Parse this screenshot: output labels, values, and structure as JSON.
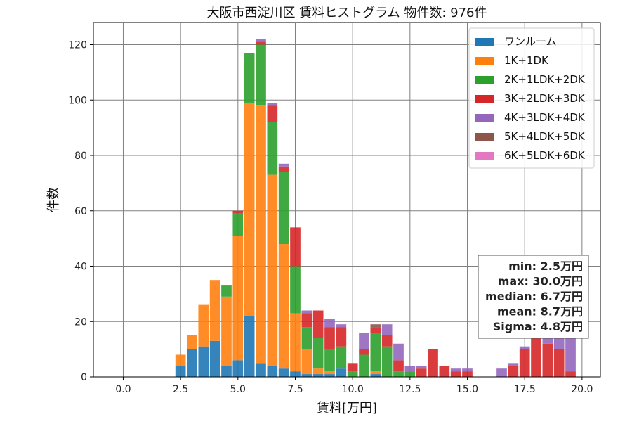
{
  "chart_data": {
    "type": "bar",
    "stacked": true,
    "title": "大阪市西淀川区 賃料ヒストグラム 物件数: 976件",
    "xlabel": "賃料[万円]",
    "ylabel": "件数",
    "xlim": [
      -1.3,
      20.8
    ],
    "ylim": [
      0,
      128
    ],
    "xticks": [
      0.0,
      2.5,
      5.0,
      7.5,
      10.0,
      12.5,
      15.0,
      17.5,
      20.0
    ],
    "xtick_labels": [
      "0.0",
      "2.5",
      "5.0",
      "7.5",
      "10.0",
      "12.5",
      "15.0",
      "17.5",
      "20.0"
    ],
    "yticks": [
      0,
      20,
      40,
      60,
      80,
      100,
      120
    ],
    "ytick_labels": [
      "0",
      "20",
      "40",
      "60",
      "80",
      "100",
      "120"
    ],
    "grid": true,
    "legend_position": "top-right",
    "bin_width": 0.5,
    "x": [
      2.5,
      3.0,
      3.5,
      4.0,
      4.5,
      5.0,
      5.5,
      6.0,
      6.5,
      7.0,
      7.5,
      8.0,
      8.5,
      9.0,
      9.5,
      10.0,
      10.5,
      11.0,
      11.5,
      12.0,
      12.5,
      13.0,
      13.5,
      14.0,
      14.5,
      15.0,
      16.5,
      17.0,
      17.5,
      18.0,
      18.5,
      19.0,
      19.5
    ],
    "series": [
      {
        "name": "ワンルーム",
        "color": "#1f77b4",
        "values": [
          4,
          10,
          11,
          13,
          4,
          6,
          22,
          5,
          4,
          3,
          2,
          1,
          1,
          1,
          3,
          0,
          0,
          1,
          0,
          0,
          0,
          0,
          0,
          0,
          0,
          0,
          0,
          0,
          0,
          0,
          0,
          0,
          0
        ]
      },
      {
        "name": "1K+1DK",
        "color": "#ff7f0e",
        "values": [
          4,
          5,
          15,
          22,
          25,
          45,
          77,
          93,
          69,
          45,
          21,
          9,
          2,
          1,
          0,
          0,
          0,
          1,
          0,
          0,
          0,
          0,
          0,
          0,
          0,
          0,
          0,
          0,
          0,
          0,
          0,
          0,
          0
        ]
      },
      {
        "name": "2K+1LDK+2DK",
        "color": "#2ca02c",
        "values": [
          0,
          0,
          0,
          0,
          4,
          8,
          18,
          22,
          19,
          26,
          17,
          8,
          11,
          8,
          8,
          2,
          8,
          14,
          11,
          2,
          2,
          0,
          0,
          0,
          0,
          0,
          0,
          0,
          0,
          0,
          0,
          0,
          0
        ]
      },
      {
        "name": "3K+2LDK+3DK",
        "color": "#d62728",
        "values": [
          0,
          0,
          0,
          0,
          0,
          1,
          0,
          1,
          6,
          2,
          14,
          5,
          10,
          8,
          7,
          3,
          2,
          2,
          4,
          4,
          0,
          3,
          10,
          4,
          2,
          2,
          0,
          4,
          10,
          15,
          12,
          10,
          2
        ]
      },
      {
        "name": "4K+3LDK+4DK",
        "color": "#9467bd",
        "values": [
          0,
          0,
          0,
          0,
          0,
          0,
          0,
          1,
          1,
          1,
          0,
          1,
          0,
          3,
          1,
          0,
          6,
          0,
          4,
          6,
          2,
          1,
          0,
          0,
          1,
          1,
          3,
          1,
          1,
          5,
          5,
          5,
          12
        ]
      },
      {
        "name": "5K+4LDK+5DK",
        "color": "#8c564b",
        "values": [
          0,
          0,
          0,
          0,
          0,
          0,
          0,
          0,
          0,
          0,
          0,
          0,
          0,
          0,
          0,
          0,
          0,
          1,
          0,
          0,
          0,
          0,
          0,
          0,
          0,
          0,
          0,
          0,
          0,
          0,
          0,
          0,
          0
        ]
      },
      {
        "name": "6K+5LDK+6DK",
        "color": "#e377c2",
        "values": [
          0,
          0,
          0,
          0,
          0,
          0,
          0,
          0,
          0,
          0,
          0,
          0,
          0,
          0,
          0,
          0,
          0,
          0,
          0,
          0,
          0,
          0,
          0,
          0,
          0,
          0,
          0,
          0,
          0,
          0,
          0,
          0,
          0
        ]
      }
    ],
    "stats_box": {
      "position": "bottom-right",
      "lines": [
        "min: 2.5万円",
        "max: 30.0万円",
        "median: 6.7万円",
        "mean: 8.7万円",
        "Sigma: 4.8万円"
      ]
    }
  }
}
